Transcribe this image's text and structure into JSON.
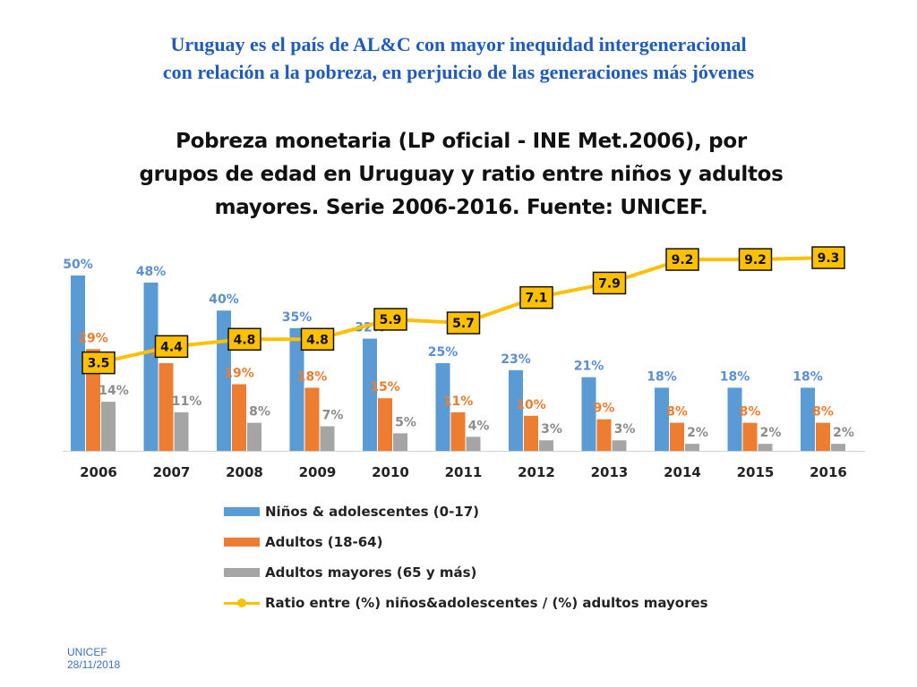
{
  "slide": {
    "title_line1": "Uruguay es el país de AL&C con mayor inequidad intergeneracional",
    "title_line2": "con relación a la pobreza, en perjuicio de las generaciones más jóvenes",
    "footer_org": "UNICEF",
    "footer_date": "28/11/2018"
  },
  "colors": {
    "title": "#1f5bbd",
    "ninos": "#5b9bd5",
    "adultos": "#ed7d31",
    "mayores": "#a5a5a5",
    "ratio_line": "#ffc000",
    "ratio_box": "#ffc000"
  },
  "chart_data": {
    "type": "bar",
    "title_line1": "Pobreza monetaria (LP oficial - INE Met.2006), por",
    "title_line2": "grupos de edad en Uruguay y ratio entre niños y adultos",
    "title_line3": "mayores. Serie 2006-2016. Fuente: UNICEF.",
    "categories": [
      "2006",
      "2007",
      "2008",
      "2009",
      "2010",
      "2011",
      "2012",
      "2013",
      "2014",
      "2015",
      "2016"
    ],
    "series": [
      {
        "name": "Niños & adolescentes (0-17)",
        "key": "ninos",
        "kind": "bar",
        "values": [
          50,
          48,
          40,
          35,
          32,
          25,
          23,
          21,
          18,
          18,
          18
        ],
        "labels": [
          "50%",
          "48%",
          "40%",
          "35%",
          "32%",
          "25%",
          "23%",
          "21%",
          "18%",
          "18%",
          "18%"
        ]
      },
      {
        "name": "Adultos (18-64)",
        "key": "adultos",
        "kind": "bar",
        "values": [
          29,
          25,
          19,
          18,
          15,
          11,
          10,
          9,
          8,
          8,
          8
        ],
        "labels": [
          "29%",
          "25%",
          "19%",
          "18%",
          "15%",
          "11%",
          "10%",
          "9%",
          "8%",
          "8%",
          "8%"
        ]
      },
      {
        "name": "Adultos mayores (65 y más)",
        "key": "mayores",
        "kind": "bar",
        "values": [
          14,
          11,
          8,
          7,
          5,
          4,
          3,
          3,
          2,
          2,
          2
        ],
        "labels": [
          "14%",
          "11%",
          "8%",
          "7%",
          "5%",
          "4%",
          "3%",
          "3%",
          "2%",
          "2%",
          "2%"
        ]
      },
      {
        "name": "Ratio entre (%) niños&adolescentes / (%) adultos mayores",
        "key": "ratio",
        "kind": "line",
        "values": [
          3.5,
          4.4,
          4.8,
          4.8,
          5.9,
          5.7,
          7.1,
          7.9,
          9.2,
          9.2,
          9.3
        ],
        "labels": [
          "3.5",
          "4.4",
          "4.8",
          "4.8",
          "5.9",
          "5.7",
          "7.1",
          "7.9",
          "9.2",
          "9.2",
          "9.3"
        ]
      }
    ],
    "ylim_bars": [
      0,
      50
    ],
    "ylim_ratio": [
      0,
      10
    ],
    "grid": false,
    "legend_position": "bottom"
  }
}
